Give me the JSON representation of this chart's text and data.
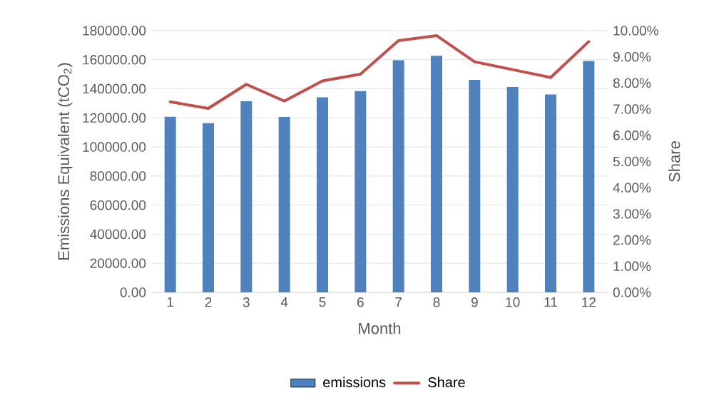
{
  "chart_data": {
    "type": "bar",
    "xlabel": "Month",
    "ylabel": "Emissions Equivalent (tCO$_{2}$)",
    "y2label": "Share",
    "categories": [
      "1",
      "2",
      "3",
      "4",
      "5",
      "6",
      "7",
      "8",
      "9",
      "10",
      "11",
      "12"
    ],
    "series": [
      {
        "name": "emissions",
        "color": "#4f81bd",
        "values": [
          120800,
          116300,
          131400,
          120700,
          134100,
          138400,
          159600,
          162700,
          146100,
          141200,
          136100,
          159200
        ]
      },
      {
        "name": "Share",
        "type": "line",
        "axis": "y2",
        "color": "#c0504d",
        "values": [
          7.28,
          7.03,
          7.95,
          7.31,
          8.08,
          8.34,
          9.62,
          9.81,
          8.81,
          8.51,
          8.21,
          9.58
        ]
      }
    ],
    "ylim": [
      0,
      180000
    ],
    "yticks": [
      {
        "value": 0,
        "label": "0.00"
      },
      {
        "value": 20000,
        "label": "20000.00"
      },
      {
        "value": 40000,
        "label": "40000.00"
      },
      {
        "value": 60000,
        "label": "60000.00"
      },
      {
        "value": 80000,
        "label": "80000.00"
      },
      {
        "value": 100000,
        "label": "100000.00"
      },
      {
        "value": 120000,
        "label": "120000.00"
      },
      {
        "value": 140000,
        "label": "140000.00"
      },
      {
        "value": 160000,
        "label": "160000.00"
      },
      {
        "value": 180000,
        "label": "180000.00"
      }
    ],
    "y2lim": [
      0,
      10
    ],
    "y2ticks": [
      {
        "value": 0,
        "label": "0.00%"
      },
      {
        "value": 1,
        "label": "1.00%"
      },
      {
        "value": 2,
        "label": "2.00%"
      },
      {
        "value": 3,
        "label": "3.00%"
      },
      {
        "value": 4,
        "label": "4.00%"
      },
      {
        "value": 5,
        "label": "5.00%"
      },
      {
        "value": 6,
        "label": "6.00%"
      },
      {
        "value": 7,
        "label": "7.00%"
      },
      {
        "value": 8,
        "label": "8.00%"
      },
      {
        "value": 9,
        "label": "9.00%"
      },
      {
        "value": 10,
        "label": "10.00%"
      }
    ],
    "grid": "y",
    "legend": "bottom"
  }
}
